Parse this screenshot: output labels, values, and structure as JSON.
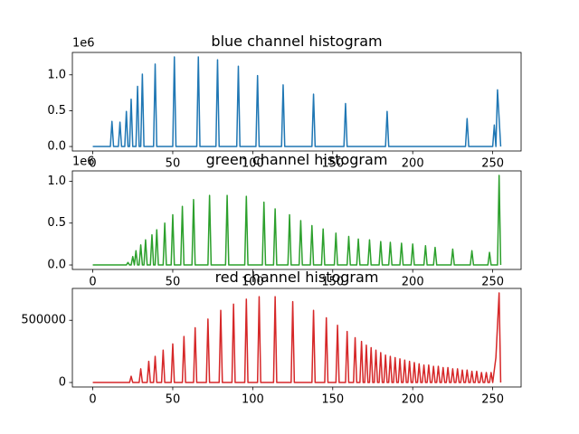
{
  "chart_data": [
    {
      "type": "line",
      "title": "blue channel histogram",
      "color": "#1f77b4",
      "offset_label": "1e6",
      "x": [
        0,
        11,
        12,
        13,
        16,
        17,
        18,
        20,
        21,
        22,
        23,
        24,
        25,
        27,
        28,
        29,
        30,
        31,
        32,
        38,
        39,
        40,
        50,
        51,
        52,
        65,
        66,
        67,
        77,
        78,
        79,
        90,
        91,
        92,
        102,
        103,
        104,
        118,
        119,
        120,
        137,
        138,
        139,
        157,
        158,
        159,
        183,
        184,
        185,
        233,
        234,
        235,
        250,
        251,
        252,
        253,
        255
      ],
      "values": [
        0,
        0,
        350000,
        0,
        0,
        340000,
        0,
        0,
        490000,
        0,
        0,
        660000,
        0,
        0,
        840000,
        0,
        0,
        1010000,
        0,
        0,
        1150000,
        0,
        0,
        1250000,
        0,
        0,
        1250000,
        0,
        0,
        1210000,
        0,
        0,
        1120000,
        0,
        0,
        990000,
        0,
        0,
        860000,
        0,
        0,
        730000,
        0,
        0,
        600000,
        0,
        0,
        490000,
        0,
        0,
        390000,
        0,
        0,
        300000,
        0,
        790000,
        0
      ],
      "xlim": [
        -12.75,
        267.75
      ],
      "xticks": [
        0,
        50,
        100,
        150,
        200,
        250
      ],
      "ylim": [
        -62500,
        1312500
      ],
      "yticks": [
        {
          "value": 0,
          "label": "0.0"
        },
        {
          "value": 500000,
          "label": "0.5"
        },
        {
          "value": 1000000,
          "label": "1.0"
        }
      ]
    },
    {
      "type": "line",
      "title": "green channel histogram",
      "color": "#2ca02c",
      "offset_label": "1e6",
      "x": [
        0,
        21,
        22,
        23,
        24,
        25,
        26,
        27,
        28,
        29,
        30,
        31,
        32,
        33,
        34,
        36,
        37,
        38,
        39,
        40,
        41,
        44,
        45,
        46,
        49,
        50,
        51,
        55,
        56,
        57,
        62,
        63,
        64,
        72,
        73,
        74,
        83,
        84,
        85,
        95,
        96,
        97,
        106,
        107,
        108,
        113,
        114,
        115,
        122,
        123,
        124,
        129,
        130,
        131,
        136,
        137,
        138,
        143,
        144,
        145,
        151,
        152,
        153,
        159,
        160,
        161,
        165,
        166,
        167,
        172,
        173,
        174,
        179,
        180,
        181,
        185,
        186,
        187,
        192,
        193,
        194,
        199,
        200,
        201,
        207,
        208,
        209,
        213,
        214,
        215,
        224,
        225,
        226,
        236,
        237,
        238,
        247,
        248,
        249,
        253,
        254,
        255
      ],
      "values": [
        0,
        0,
        30000,
        0,
        0,
        100000,
        0,
        170000,
        0,
        0,
        240000,
        0,
        0,
        300000,
        0,
        0,
        360000,
        0,
        0,
        420000,
        0,
        0,
        500000,
        0,
        0,
        600000,
        0,
        0,
        700000,
        0,
        0,
        780000,
        0,
        0,
        830000,
        0,
        0,
        830000,
        0,
        0,
        820000,
        0,
        0,
        750000,
        0,
        0,
        670000,
        0,
        0,
        600000,
        0,
        0,
        530000,
        0,
        0,
        470000,
        0,
        0,
        430000,
        0,
        0,
        380000,
        0,
        0,
        340000,
        0,
        0,
        310000,
        0,
        0,
        300000,
        0,
        0,
        280000,
        0,
        0,
        270000,
        0,
        0,
        260000,
        0,
        0,
        250000,
        0,
        0,
        230000,
        0,
        0,
        210000,
        0,
        0,
        190000,
        0,
        0,
        170000,
        0,
        0,
        150000,
        0,
        0,
        1070000,
        0
      ],
      "xlim": [
        -12.75,
        267.75
      ],
      "xticks": [
        0,
        50,
        100,
        150,
        200,
        250
      ],
      "ylim": [
        -53500,
        1123500
      ],
      "yticks": [
        {
          "value": 0,
          "label": "0.0"
        },
        {
          "value": 500000,
          "label": "0.5"
        },
        {
          "value": 1000000,
          "label": "1.0"
        }
      ]
    },
    {
      "type": "line",
      "title": "red channel histogram",
      "color": "#d62728",
      "x": [
        0,
        23,
        24,
        25,
        29,
        30,
        31,
        34,
        35,
        36,
        38,
        39,
        40,
        43,
        44,
        45,
        49,
        50,
        51,
        56,
        57,
        58,
        63,
        64,
        65,
        71,
        72,
        73,
        79,
        80,
        81,
        87,
        88,
        89,
        95,
        96,
        97,
        103,
        104,
        105,
        113,
        114,
        115,
        124,
        125,
        126,
        137,
        138,
        139,
        145,
        146,
        147,
        152,
        153,
        154,
        158,
        159,
        160,
        163,
        164,
        165,
        167,
        168,
        169,
        170,
        171,
        172,
        173,
        174,
        175,
        176,
        177,
        178,
        179,
        180,
        181,
        182,
        183,
        184,
        185,
        186,
        187,
        188,
        189,
        190,
        191,
        192,
        193,
        194,
        195,
        196,
        197,
        198,
        199,
        200,
        201,
        202,
        203,
        204,
        205,
        206,
        207,
        208,
        209,
        210,
        211,
        212,
        213,
        214,
        215,
        216,
        217,
        218,
        219,
        220,
        221,
        222,
        223,
        224,
        225,
        226,
        227,
        228,
        229,
        230,
        231,
        232,
        233,
        234,
        235,
        236,
        237,
        238,
        239,
        240,
        241,
        242,
        243,
        244,
        245,
        246,
        247,
        248,
        249,
        250,
        252,
        254,
        255
      ],
      "values": [
        0,
        0,
        50000,
        0,
        0,
        110000,
        0,
        0,
        170000,
        0,
        0,
        210000,
        0,
        0,
        260000,
        0,
        0,
        310000,
        0,
        0,
        370000,
        0,
        0,
        440000,
        0,
        0,
        510000,
        0,
        0,
        580000,
        0,
        0,
        630000,
        0,
        0,
        670000,
        0,
        0,
        690000,
        0,
        0,
        690000,
        0,
        0,
        650000,
        0,
        0,
        580000,
        0,
        0,
        520000,
        0,
        0,
        460000,
        0,
        0,
        410000,
        0,
        0,
        360000,
        0,
        0,
        330000,
        0,
        0,
        300000,
        0,
        0,
        280000,
        0,
        0,
        260000,
        0,
        0,
        240000,
        0,
        0,
        220000,
        0,
        0,
        210000,
        0,
        0,
        200000,
        0,
        0,
        190000,
        0,
        0,
        180000,
        0,
        0,
        170000,
        0,
        0,
        160000,
        0,
        0,
        150000,
        0,
        0,
        140000,
        0,
        0,
        140000,
        0,
        0,
        130000,
        0,
        0,
        130000,
        0,
        0,
        120000,
        0,
        0,
        120000,
        0,
        0,
        110000,
        0,
        0,
        110000,
        0,
        0,
        100000,
        0,
        0,
        100000,
        0,
        0,
        90000,
        0,
        0,
        90000,
        0,
        0,
        80000,
        0,
        0,
        80000,
        0,
        0,
        80000,
        0,
        200000,
        720000,
        0
      ],
      "xlim": [
        -12.75,
        267.75
      ],
      "xticks": [
        0,
        50,
        100,
        150,
        200,
        250
      ],
      "ylim": [
        -36000,
        756000
      ],
      "yticks": [
        0,
        500000
      ]
    }
  ]
}
